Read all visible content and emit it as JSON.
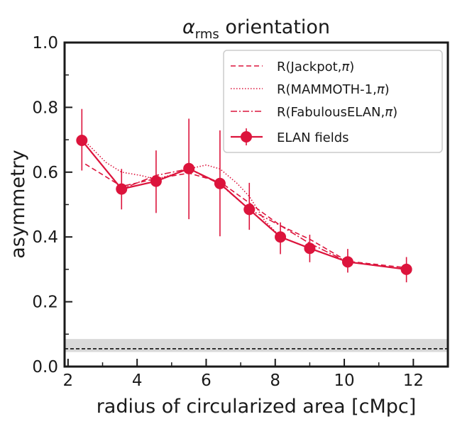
{
  "chart_data": {
    "type": "line",
    "title": {
      "symbol": "α",
      "subscript": "rms",
      "rest": " orientation"
    },
    "xlabel": "radius of circularized area [cMpc]",
    "ylabel": "asymmetry",
    "xlim": [
      1.9,
      13.0
    ],
    "ylim": [
      0.0,
      1.0
    ],
    "x_ticks": [
      2,
      4,
      6,
      8,
      10,
      12
    ],
    "x_tick_labels": [
      "2",
      "4",
      "6",
      "8",
      "10",
      "12"
    ],
    "y_ticks": [
      0.0,
      0.2,
      0.4,
      0.6,
      0.8,
      1.0
    ],
    "y_tick_labels": [
      "0.0",
      "0.2",
      "0.4",
      "0.6",
      "0.8",
      "1.0"
    ],
    "color": "#dc143c",
    "reference_band": {
      "low": 0.045,
      "high": 0.085,
      "line": 0.055,
      "band_color": "#d9d9d9"
    },
    "legend": {
      "placement": "top-right",
      "entries": [
        {
          "label": "R(Jackpot,",
          "pi": "π",
          "close": ")",
          "style": "dashed"
        },
        {
          "label": "R(MAMMOTH-1,",
          "pi": "π",
          "close": ")",
          "style": "dotted"
        },
        {
          "label": "R(FabulousELAN,",
          "pi": "π",
          "close": ")",
          "style": "dashdot"
        },
        {
          "label": "ELAN fields",
          "pi": "",
          "close": "",
          "style": "errorbar"
        }
      ]
    },
    "series": [
      {
        "name": "ELAN fields",
        "x": [
          2.4,
          3.55,
          4.55,
          5.5,
          6.4,
          7.25,
          8.15,
          9.0,
          10.1,
          11.8
        ],
        "y": [
          0.698,
          0.548,
          0.572,
          0.611,
          0.565,
          0.485,
          0.4,
          0.365,
          0.323,
          0.3
        ],
        "yerr_low": [
          0.093,
          0.063,
          0.098,
          0.156,
          0.163,
          0.063,
          0.053,
          0.043,
          0.033,
          0.04
        ],
        "yerr_high": [
          0.097,
          0.062,
          0.095,
          0.154,
          0.164,
          0.082,
          0.045,
          0.042,
          0.04,
          0.038
        ]
      },
      {
        "name": "R(Jackpot,π)",
        "x": [
          2.5,
          3.55,
          4.55,
          5.5,
          6.4,
          7.25,
          8.15,
          9.0,
          10.1,
          11.8
        ],
        "y": [
          0.625,
          0.556,
          0.58,
          0.597,
          0.57,
          0.505,
          0.435,
          0.393,
          0.325,
          0.305
        ]
      },
      {
        "name": "R(MAMMOTH-1,π)",
        "x": [
          2.4,
          3.1,
          3.55,
          4.1,
          4.55,
          5.0,
          5.5,
          6.0,
          6.4,
          6.9,
          7.25,
          7.7,
          8.15,
          9.0,
          10.1,
          11.8
        ],
        "y": [
          0.705,
          0.63,
          0.6,
          0.59,
          0.578,
          0.592,
          0.61,
          0.622,
          0.61,
          0.565,
          0.525,
          0.45,
          0.4,
          0.365,
          0.323,
          0.3
        ]
      },
      {
        "name": "R(FabulousELAN,π)",
        "x": [
          2.4,
          3.55,
          4.55,
          5.5,
          6.4,
          7.25,
          8.15,
          9.0,
          10.1,
          11.8
        ],
        "y": [
          0.698,
          0.548,
          0.59,
          0.61,
          0.563,
          0.485,
          0.435,
          0.38,
          0.323,
          0.3
        ]
      }
    ]
  }
}
